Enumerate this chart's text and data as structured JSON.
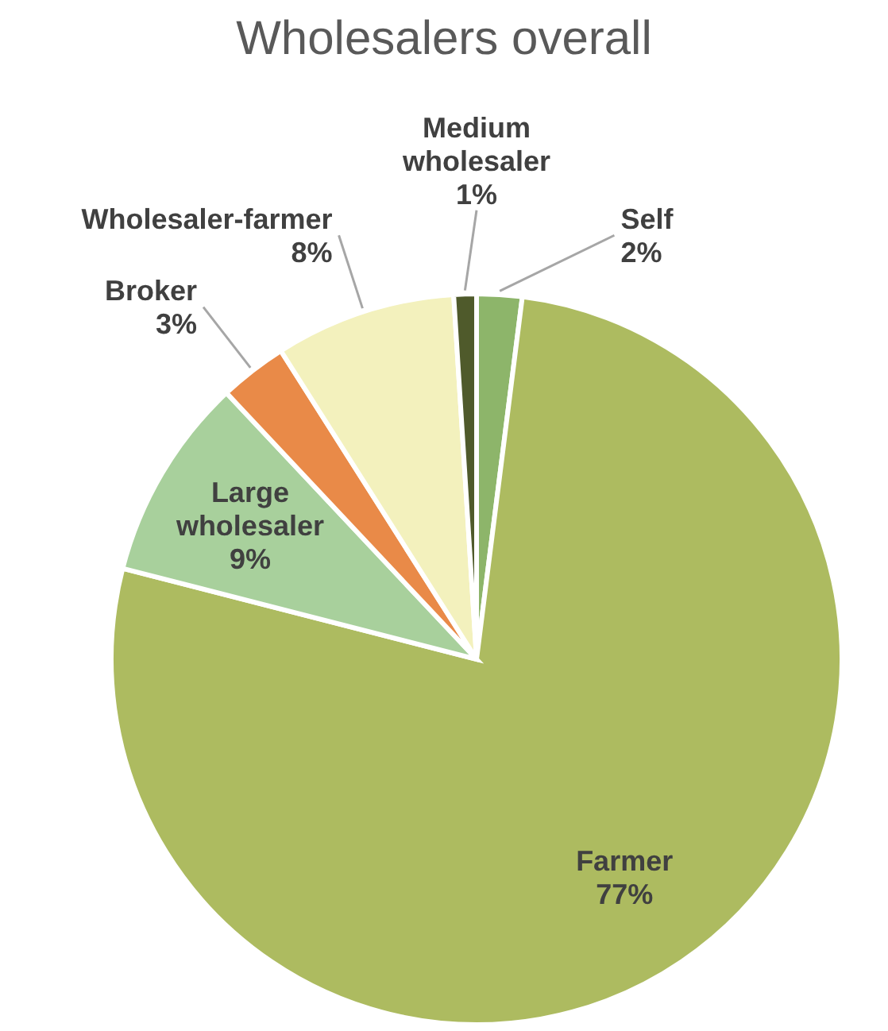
{
  "chart_data": {
    "type": "pie",
    "title": "Wholesalers overall",
    "categories": [
      "Self",
      "Farmer",
      "Large wholesaler",
      "Broker",
      "Wholesaler-farmer",
      "Medium wholesaler"
    ],
    "values": [
      2,
      77,
      9,
      3,
      8,
      1
    ],
    "colors": [
      "#8db56a",
      "#adbb60",
      "#a8d09c",
      "#e98a48",
      "#f3f1bd",
      "#4f5a2b"
    ],
    "value_labels": [
      "2%",
      "77%",
      "9%",
      "3%",
      "8%",
      "1%"
    ]
  }
}
